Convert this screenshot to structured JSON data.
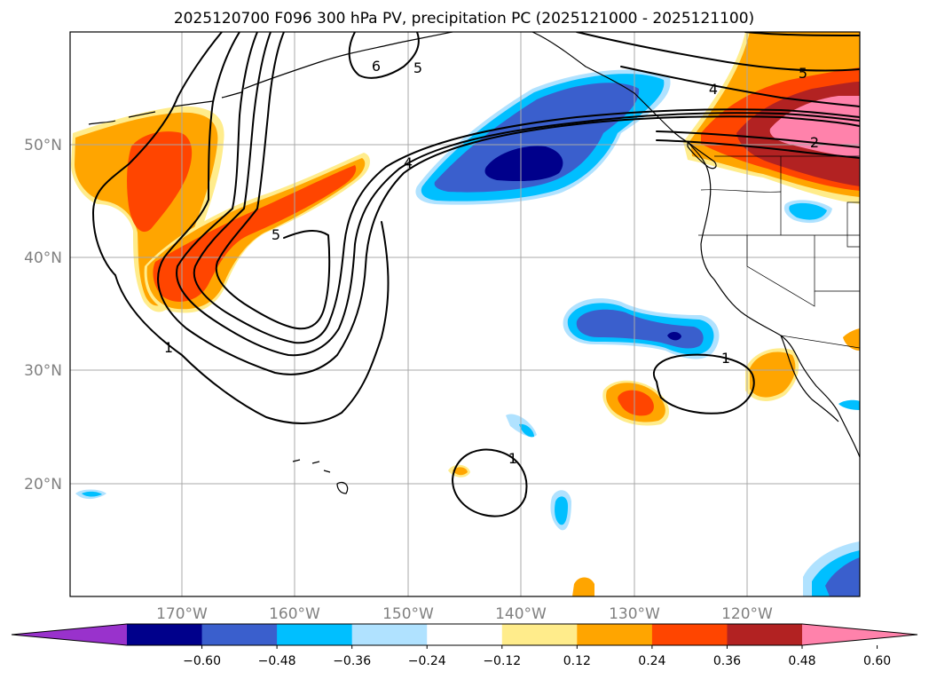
{
  "title": "2025120700 F096 300 hPa PV, precipitation PC (2025121000 - 2025121100)",
  "map": {
    "lon_labels": [
      "170°W",
      "160°W",
      "150°W",
      "140°W",
      "130°W",
      "120°W"
    ],
    "lat_labels": [
      "50°N",
      "40°N",
      "30°N",
      "20°N"
    ],
    "contour_labels": {
      "pv_1_west": "1",
      "pv_1_east": "1",
      "pv_1_south": "1",
      "pv_4": "4",
      "pv_4_north": "4",
      "pv_5_north": "5",
      "pv_5_mid": "5",
      "pv_5_east": "5",
      "pv_6": "6",
      "pv_2_east": "2"
    }
  },
  "colorbar": {
    "ticks": [
      "−0.60",
      "−0.48",
      "−0.36",
      "−0.24",
      "−0.12",
      "0.12",
      "0.24",
      "0.36",
      "0.48",
      "0.60"
    ],
    "colors": [
      "#9932cc",
      "#00008b",
      "#3a5fcd",
      "#00bfff",
      "#b0e2ff",
      "#ffffff",
      "#ffec8b",
      "#ffa500",
      "#ff4500",
      "#b22222",
      "#ff82ab"
    ]
  }
}
